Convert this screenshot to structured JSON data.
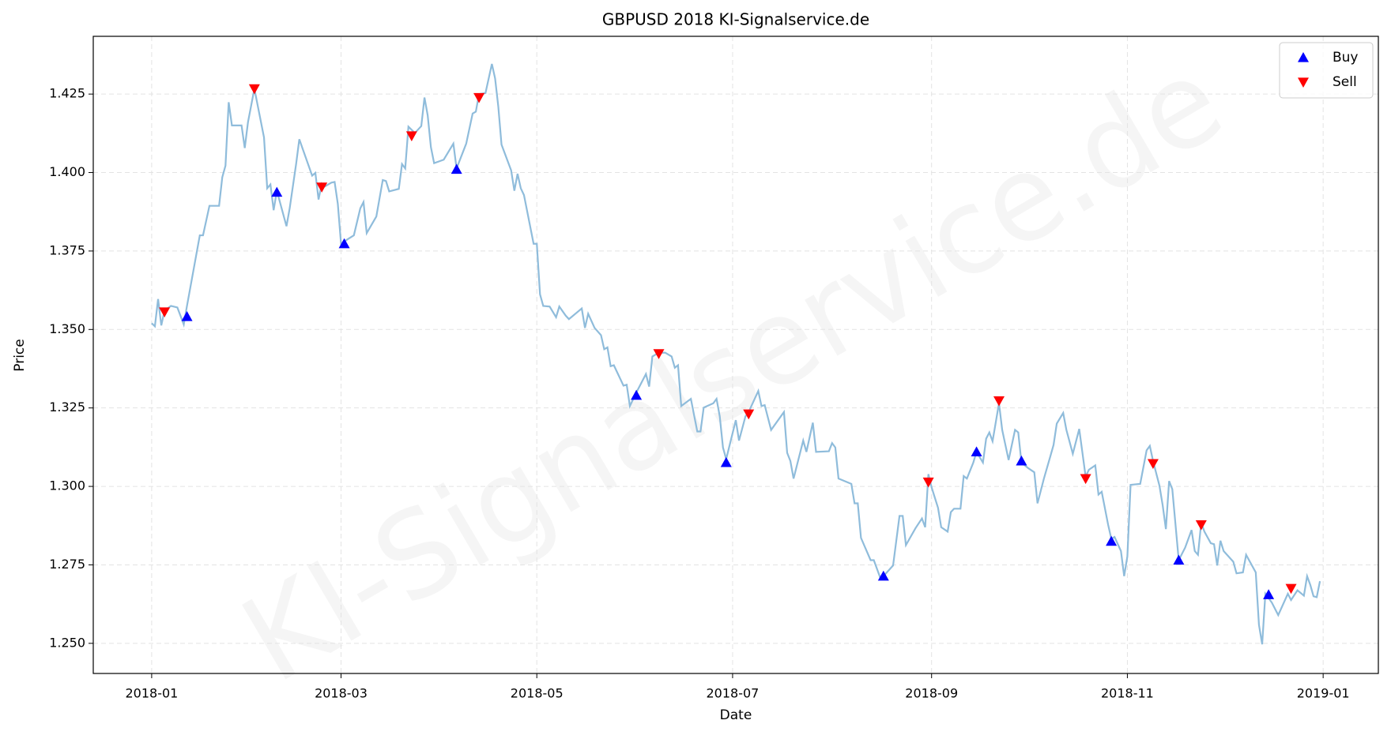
{
  "chart_data": {
    "type": "line",
    "title": "GBPUSD 2018 KI-Signalservice.de",
    "watermark": "KI-Signalservice.de",
    "x_label": "Date",
    "y_label": "Price",
    "xlim": [
      -18.2,
      382.2
    ],
    "ylim": [
      1.2404,
      1.4434
    ],
    "xticks": [
      {
        "value": 0,
        "label": "2018-01"
      },
      {
        "value": 59,
        "label": "2018-03"
      },
      {
        "value": 120,
        "label": "2018-05"
      },
      {
        "value": 181,
        "label": "2018-07"
      },
      {
        "value": 243,
        "label": "2018-09"
      },
      {
        "value": 304,
        "label": "2018-11"
      },
      {
        "value": 365,
        "label": "2019-01"
      }
    ],
    "yticks": [
      {
        "value": 1.25,
        "label": "1.250"
      },
      {
        "value": 1.275,
        "label": "1.275"
      },
      {
        "value": 1.3,
        "label": "1.300"
      },
      {
        "value": 1.325,
        "label": "1.325"
      },
      {
        "value": 1.35,
        "label": "1.350"
      },
      {
        "value": 1.375,
        "label": "1.375"
      },
      {
        "value": 1.4,
        "label": "1.400"
      },
      {
        "value": 1.425,
        "label": "1.425"
      }
    ],
    "grid": true,
    "legend": "upper right",
    "line": {
      "color": "#8fbcdb",
      "x": [
        0,
        1,
        2,
        3,
        4,
        6,
        8,
        10,
        11,
        15,
        16,
        18,
        21,
        22,
        23,
        24,
        25,
        28,
        29,
        30,
        32,
        35,
        36,
        37,
        38,
        39,
        42,
        43,
        45,
        46,
        49,
        50,
        51,
        52,
        53,
        54,
        56,
        57,
        58,
        59,
        61,
        63,
        65,
        66,
        67,
        70,
        72,
        73,
        74,
        77,
        78,
        79,
        80,
        82,
        84,
        85,
        86,
        87,
        88,
        91,
        92,
        94,
        95,
        98,
        100,
        101,
        102,
        104,
        106,
        107,
        108,
        109,
        112,
        113,
        114,
        115,
        116,
        119,
        120,
        121,
        122,
        124,
        126,
        127,
        129,
        130,
        134,
        135,
        136,
        138,
        140,
        141,
        142,
        143,
        144,
        147,
        148,
        149,
        151,
        154,
        155,
        156,
        158,
        160,
        162,
        163,
        164,
        165,
        168,
        170,
        171,
        172,
        175,
        176,
        177,
        178,
        179,
        182,
        183,
        185,
        186,
        189,
        190,
        191,
        193,
        197,
        198,
        199,
        200,
        203,
        204,
        206,
        207,
        211,
        212,
        213,
        214,
        218,
        219,
        220,
        221,
        224,
        225,
        227,
        228,
        231,
        232,
        233,
        234,
        235,
        238,
        240,
        241,
        242,
        243,
        245,
        246,
        248,
        249,
        250,
        252,
        253,
        254,
        256,
        257,
        259,
        260,
        261,
        262,
        264,
        265,
        267,
        269,
        270,
        271,
        273,
        275,
        276,
        278,
        280,
        281,
        282,
        284,
        285,
        287,
        289,
        291,
        292,
        294,
        295,
        296,
        298,
        299,
        300,
        302,
        303,
        304,
        305,
        308,
        310,
        311,
        312,
        314,
        315,
        316,
        317,
        318,
        320,
        322,
        324,
        325,
        326,
        327,
        328,
        330,
        331,
        332,
        333,
        334,
        337,
        338,
        340,
        341,
        344,
        345,
        346,
        347,
        349,
        351,
        354,
        355,
        357,
        359,
        360,
        361,
        362,
        363,
        364
      ],
      "values": [
        1.352,
        1.351,
        1.3597,
        1.3513,
        1.356,
        1.3575,
        1.357,
        1.3516,
        1.3575,
        1.38,
        1.38,
        1.3894,
        1.3894,
        1.3985,
        1.4022,
        1.4224,
        1.415,
        1.415,
        1.4078,
        1.416,
        1.4267,
        1.4112,
        1.395,
        1.3962,
        1.388,
        1.3942,
        1.3829,
        1.3886,
        1.4027,
        1.4106,
        1.4019,
        1.399,
        1.3999,
        1.3914,
        1.3965,
        1.3956,
        1.3968,
        1.397,
        1.39,
        1.3773,
        1.3787,
        1.38,
        1.3886,
        1.3906,
        1.3807,
        1.386,
        1.3976,
        1.3973,
        1.394,
        1.3948,
        1.4027,
        1.4013,
        1.4146,
        1.4126,
        1.4148,
        1.4239,
        1.4182,
        1.4081,
        1.403,
        1.4041,
        1.4058,
        1.4092,
        1.4013,
        1.4092,
        1.4188,
        1.4194,
        1.425,
        1.4253,
        1.4346,
        1.43,
        1.421,
        1.4089,
        1.4007,
        1.3942,
        1.3996,
        1.395,
        1.3928,
        1.3773,
        1.3773,
        1.3612,
        1.3575,
        1.3573,
        1.3539,
        1.3573,
        1.3544,
        1.3533,
        1.3567,
        1.3505,
        1.355,
        1.3505,
        1.3482,
        1.3437,
        1.3443,
        1.3383,
        1.3386,
        1.3321,
        1.3324,
        1.3256,
        1.3299,
        1.3358,
        1.3318,
        1.3414,
        1.3426,
        1.3426,
        1.3414,
        1.3378,
        1.3386,
        1.3256,
        1.3279,
        1.3175,
        1.3175,
        1.3251,
        1.3265,
        1.3279,
        1.3223,
        1.3124,
        1.3087,
        1.3211,
        1.3146,
        1.3223,
        1.3237,
        1.3304,
        1.3256,
        1.3259,
        1.318,
        1.3237,
        1.3107,
        1.3081,
        1.3025,
        1.3146,
        1.311,
        1.3203,
        1.311,
        1.3112,
        1.3138,
        1.3124,
        1.3025,
        1.3008,
        1.2946,
        1.2946,
        1.2836,
        1.2765,
        1.2765,
        1.2709,
        1.2714,
        1.2748,
        1.2827,
        1.2906,
        1.2906,
        1.2813,
        1.2867,
        1.2898,
        1.287,
        1.3039,
        1.2997,
        1.2932,
        1.287,
        1.2856,
        1.2918,
        1.2929,
        1.2929,
        1.3033,
        1.3025,
        1.3076,
        1.311,
        1.3076,
        1.3152,
        1.3172,
        1.3144,
        1.3265,
        1.318,
        1.3084,
        1.318,
        1.3172,
        1.3076,
        1.3059,
        1.3045,
        1.2946,
        1.3025,
        1.3096,
        1.3132,
        1.32,
        1.3234,
        1.318,
        1.3104,
        1.3183,
        1.3031,
        1.3053,
        1.3067,
        1.2974,
        1.2983,
        1.2878,
        1.2833,
        1.2839,
        1.2794,
        1.2714,
        1.2777,
        1.3005,
        1.3008,
        1.3115,
        1.3129,
        1.3081,
        1.3002,
        1.294,
        1.2864,
        1.3017,
        1.2991,
        1.2765,
        1.2805,
        1.2861,
        1.2794,
        1.2782,
        1.2884,
        1.2856,
        1.2819,
        1.2816,
        1.2748,
        1.2827,
        1.2794,
        1.276,
        1.2723,
        1.2726,
        1.2782,
        1.2726,
        1.2559,
        1.2497,
        1.2658,
        1.263,
        1.259,
        1.2658,
        1.2638,
        1.2669,
        1.2652,
        1.2714,
        1.2686,
        1.265,
        1.2647,
        1.2698
      ]
    },
    "series": [
      {
        "name": "Buy",
        "color": "#0000ff",
        "marker": "up",
        "x": [
          11,
          39,
          60,
          95,
          151,
          179,
          228,
          257,
          271,
          299,
          320,
          348
        ],
        "values": [
          1.3541,
          1.3937,
          1.3773,
          1.401,
          1.329,
          1.3076,
          1.2714,
          1.311,
          1.3081,
          1.2825,
          1.2765,
          1.2655
        ]
      },
      {
        "name": "Sell",
        "color": "#ff0000",
        "marker": "down",
        "x": [
          4,
          32,
          53,
          81,
          102,
          158,
          186,
          242,
          264,
          291,
          312,
          327,
          355
        ],
        "values": [
          1.3556,
          1.4267,
          1.3954,
          1.4117,
          1.4239,
          1.3423,
          1.3231,
          1.3014,
          1.3273,
          1.3025,
          1.3073,
          1.2878,
          1.2675
        ]
      }
    ]
  }
}
